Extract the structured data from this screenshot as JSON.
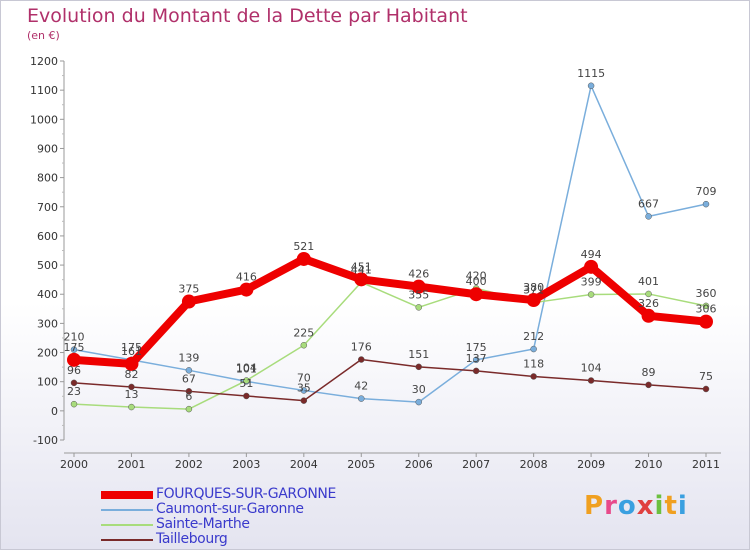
{
  "header": {
    "title": "Evolution du Montant de la Dette par Habitant",
    "subtitle": "(en €)"
  },
  "logo": {
    "text": "Proxiti",
    "letters": [
      "P",
      "r",
      "o",
      "x",
      "i",
      "t",
      "i"
    ],
    "colors": [
      "#f0a020",
      "#e84a8a",
      "#3aa0e0",
      "#e04040",
      "#6cc040",
      "#f0a020",
      "#3aa0e0"
    ]
  },
  "chart_data": {
    "type": "line",
    "title": "Evolution du Montant de la Dette par Habitant",
    "subtitle": "(en €)",
    "xlabel": "",
    "ylabel": "",
    "categories": [
      "2000",
      "2001",
      "2002",
      "2003",
      "2004",
      "2005",
      "2006",
      "2007",
      "2008",
      "2009",
      "2010",
      "2011"
    ],
    "y_ticks": [
      -100,
      0,
      100,
      200,
      300,
      400,
      500,
      600,
      700,
      800,
      900,
      1000,
      1100,
      1200
    ],
    "ylim": [
      -100,
      1200
    ],
    "grid": false,
    "legend_position": "bottom-left",
    "series": [
      {
        "name": "FOURQUES-SUR-GARONNE",
        "color": "#ee0000",
        "width": 8,
        "marker": 7,
        "values": [
          175,
          161,
          375,
          416,
          521,
          451,
          426,
          400,
          380,
          494,
          326,
          306
        ]
      },
      {
        "name": "Caumont-sur-Garonne",
        "color": "#7aaedc",
        "width": 1.5,
        "marker": 3,
        "values": [
          210,
          175,
          139,
          101,
          70,
          42,
          30,
          175,
          212,
          1115,
          667,
          709
        ]
      },
      {
        "name": "Sainte-Marthe",
        "color": "#a8dc7c",
        "width": 1.5,
        "marker": 3,
        "values": [
          23,
          13,
          6,
          104,
          225,
          441,
          355,
          420,
          371,
          399,
          401,
          360
        ]
      },
      {
        "name": "Taillebourg",
        "color": "#7a2a2a",
        "width": 1.5,
        "marker": 3,
        "values": [
          96,
          82,
          67,
          51,
          35,
          176,
          151,
          137,
          118,
          104,
          89,
          75
        ]
      }
    ]
  }
}
